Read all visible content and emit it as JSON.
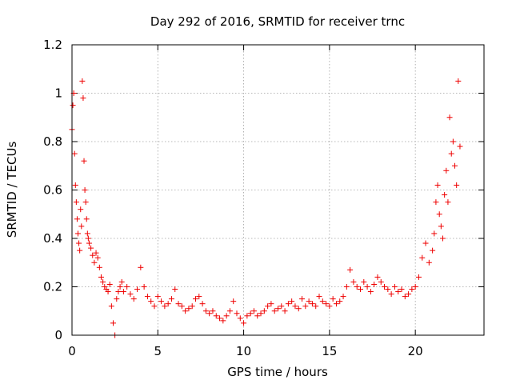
{
  "chart_data": {
    "type": "scatter",
    "title": "Day 292 of 2016, SRMTID for receiver trnc",
    "xlabel": "GPS time / hours",
    "ylabel": "SRMTID / TECUs",
    "xlim": [
      0,
      24
    ],
    "ylim": [
      0,
      1.2
    ],
    "xticks": [
      0,
      5,
      10,
      15,
      20
    ],
    "xtick_labels": [
      "0",
      "5",
      "10",
      "15",
      "20"
    ],
    "yticks": [
      0,
      0.2,
      0.4,
      0.6,
      0.8,
      1.0,
      1.2
    ],
    "ytick_labels": [
      "0",
      "0.2",
      "0.4",
      "0.6",
      "0.8",
      "1",
      "1.2"
    ],
    "grid": true,
    "marker": "+",
    "color": "#ee0000",
    "series": [
      {
        "name": "trnc",
        "x": [
          0.0,
          0.05,
          0.1,
          0.15,
          0.2,
          0.25,
          0.3,
          0.35,
          0.4,
          0.45,
          0.5,
          0.55,
          0.6,
          0.65,
          0.7,
          0.75,
          0.8,
          0.85,
          0.9,
          0.95,
          1.0,
          1.1,
          1.2,
          1.3,
          1.4,
          1.5,
          1.6,
          1.7,
          1.8,
          1.9,
          2.0,
          2.1,
          2.2,
          2.3,
          2.4,
          2.5,
          2.6,
          2.7,
          2.8,
          2.9,
          3.0,
          3.2,
          3.4,
          3.6,
          3.8,
          4.0,
          4.2,
          4.4,
          4.6,
          4.8,
          5.0,
          5.2,
          5.4,
          5.6,
          5.8,
          6.0,
          6.2,
          6.4,
          6.6,
          6.8,
          7.0,
          7.2,
          7.4,
          7.6,
          7.8,
          8.0,
          8.2,
          8.4,
          8.6,
          8.8,
          9.0,
          9.2,
          9.4,
          9.6,
          9.8,
          10.0,
          10.2,
          10.4,
          10.6,
          10.8,
          11.0,
          11.2,
          11.4,
          11.6,
          11.8,
          12.0,
          12.2,
          12.4,
          12.6,
          12.8,
          13.0,
          13.2,
          13.4,
          13.6,
          13.8,
          14.0,
          14.2,
          14.4,
          14.6,
          14.8,
          15.0,
          15.2,
          15.4,
          15.6,
          15.8,
          16.0,
          16.2,
          16.4,
          16.6,
          16.8,
          17.0,
          17.2,
          17.4,
          17.6,
          17.8,
          18.0,
          18.2,
          18.4,
          18.6,
          18.8,
          19.0,
          19.2,
          19.4,
          19.6,
          19.8,
          20.0,
          20.2,
          20.4,
          20.6,
          20.8,
          21.0,
          21.1,
          21.2,
          21.3,
          21.4,
          21.5,
          21.6,
          21.7,
          21.8,
          21.9,
          22.0,
          22.1,
          22.2,
          22.3,
          22.4,
          22.5,
          22.6
        ],
        "y": [
          0.85,
          0.95,
          1.0,
          0.75,
          0.62,
          0.55,
          0.48,
          0.42,
          0.38,
          0.35,
          0.52,
          0.45,
          1.05,
          0.98,
          0.72,
          0.6,
          0.55,
          0.48,
          0.42,
          0.4,
          0.38,
          0.36,
          0.33,
          0.3,
          0.34,
          0.32,
          0.28,
          0.24,
          0.22,
          0.2,
          0.19,
          0.18,
          0.21,
          0.12,
          0.05,
          0.0,
          0.15,
          0.18,
          0.2,
          0.22,
          0.18,
          0.2,
          0.17,
          0.15,
          0.19,
          0.28,
          0.2,
          0.16,
          0.14,
          0.12,
          0.16,
          0.14,
          0.12,
          0.13,
          0.15,
          0.19,
          0.13,
          0.12,
          0.1,
          0.11,
          0.12,
          0.15,
          0.16,
          0.13,
          0.1,
          0.09,
          0.1,
          0.08,
          0.07,
          0.06,
          0.08,
          0.1,
          0.14,
          0.09,
          0.07,
          0.05,
          0.08,
          0.09,
          0.1,
          0.08,
          0.09,
          0.1,
          0.12,
          0.13,
          0.1,
          0.11,
          0.12,
          0.1,
          0.13,
          0.14,
          0.12,
          0.11,
          0.15,
          0.12,
          0.14,
          0.13,
          0.12,
          0.16,
          0.14,
          0.13,
          0.12,
          0.15,
          0.13,
          0.14,
          0.16,
          0.2,
          0.27,
          0.22,
          0.2,
          0.19,
          0.22,
          0.2,
          0.18,
          0.21,
          0.24,
          0.22,
          0.2,
          0.19,
          0.17,
          0.2,
          0.18,
          0.19,
          0.16,
          0.17,
          0.19,
          0.2,
          0.24,
          0.32,
          0.38,
          0.3,
          0.35,
          0.42,
          0.55,
          0.62,
          0.5,
          0.45,
          0.4,
          0.58,
          0.68,
          0.55,
          0.9,
          0.75,
          0.8,
          0.7,
          0.62,
          1.05,
          0.78
        ]
      }
    ]
  }
}
